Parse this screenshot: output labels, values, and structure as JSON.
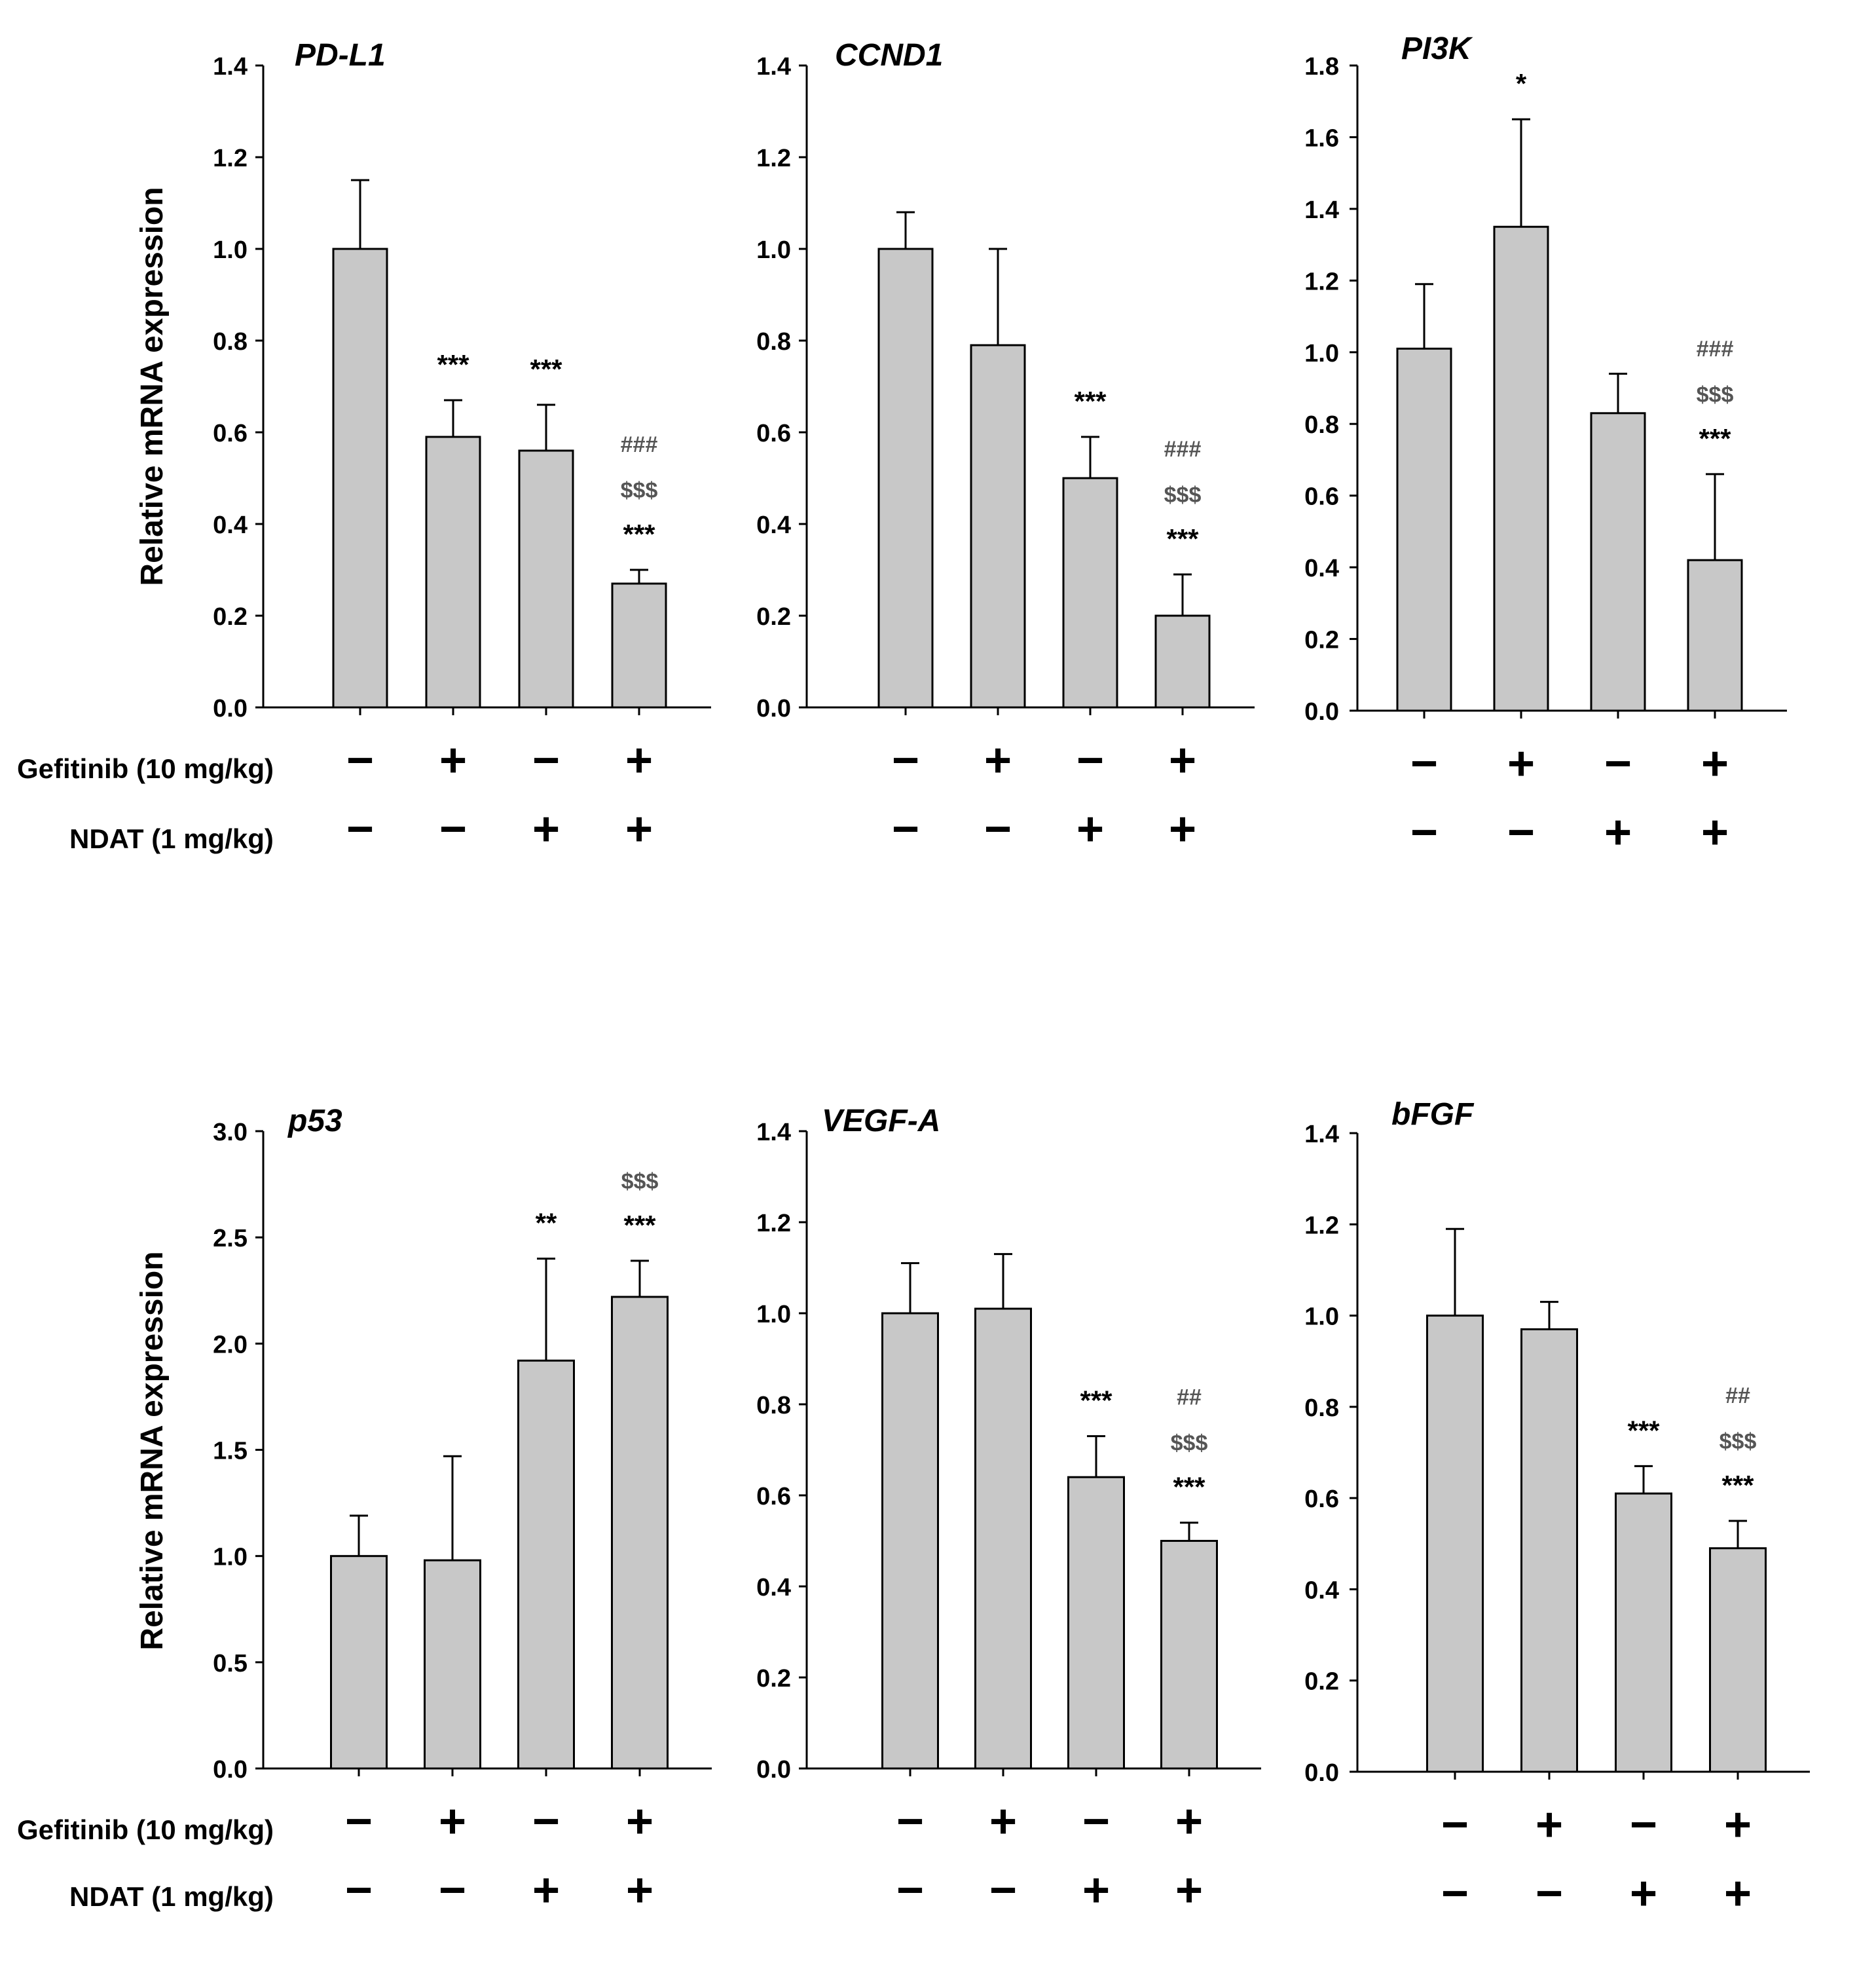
{
  "figure": {
    "ylabel": "Relative mRNA expression",
    "row_labels": [
      "Gefitinib (10 mg/kg)",
      "NDAT (1 mg/kg)"
    ],
    "gefitinib": [
      "−",
      "+",
      "−",
      "+"
    ],
    "ndat": [
      "−",
      "−",
      "+",
      "+"
    ]
  },
  "colors": {
    "bar_fill": "#c8c8c8",
    "bar_stroke": "#000000",
    "axis": "#000000",
    "text": "#000000",
    "annotation_gray": "#555555"
  },
  "chart_data": [
    {
      "type": "bar",
      "title": "PD-L1",
      "ylabel": "Relative mRNA expression",
      "categories": [
        "Gef−/NDAT−",
        "Gef+/NDAT−",
        "Gef−/NDAT+",
        "Gef+/NDAT+"
      ],
      "values": [
        1.0,
        0.59,
        0.56,
        0.27
      ],
      "errors": [
        0.15,
        0.08,
        0.1,
        0.03
      ],
      "ylim": [
        0,
        1.4
      ],
      "yticks": [
        0.0,
        0.2,
        0.4,
        0.6,
        0.8,
        1.0,
        1.2,
        1.4
      ],
      "tick_decimals": 1,
      "annotations": [
        [],
        [
          "***"
        ],
        [
          "***"
        ],
        [
          "###",
          "$$$",
          "***"
        ]
      ]
    },
    {
      "type": "bar",
      "title": "CCND1",
      "ylabel": "",
      "categories": [
        "Gef−/NDAT−",
        "Gef+/NDAT−",
        "Gef−/NDAT+",
        "Gef+/NDAT+"
      ],
      "values": [
        1.0,
        0.79,
        0.5,
        0.2
      ],
      "errors": [
        0.08,
        0.21,
        0.09,
        0.09
      ],
      "ylim": [
        0,
        1.4
      ],
      "yticks": [
        0.0,
        0.2,
        0.4,
        0.6,
        0.8,
        1.0,
        1.2,
        1.4
      ],
      "tick_decimals": 1,
      "annotations": [
        [],
        [],
        [
          "***"
        ],
        [
          "###",
          "$$$",
          "***"
        ]
      ]
    },
    {
      "type": "bar",
      "title": "PI3K",
      "ylabel": "",
      "categories": [
        "Gef−/NDAT−",
        "Gef+/NDAT−",
        "Gef−/NDAT+",
        "Gef+/NDAT+"
      ],
      "values": [
        1.01,
        1.35,
        0.83,
        0.42
      ],
      "errors": [
        0.18,
        0.3,
        0.11,
        0.24
      ],
      "ylim": [
        0,
        1.8
      ],
      "yticks": [
        0.0,
        0.2,
        0.4,
        0.6,
        0.8,
        1.0,
        1.2,
        1.4,
        1.6,
        1.8
      ],
      "tick_decimals": 1,
      "annotations": [
        [],
        [
          "*"
        ],
        [],
        [
          "###",
          "$$$",
          "***"
        ]
      ]
    },
    {
      "type": "bar",
      "title": "p53",
      "ylabel": "Relative mRNA expression",
      "categories": [
        "Gef−/NDAT−",
        "Gef+/NDAT−",
        "Gef−/NDAT+",
        "Gef+/NDAT+"
      ],
      "values": [
        1.0,
        0.98,
        1.92,
        2.22
      ],
      "errors": [
        0.19,
        0.49,
        0.48,
        0.17
      ],
      "ylim": [
        0,
        3.0
      ],
      "yticks": [
        0.0,
        0.5,
        1.0,
        1.5,
        2.0,
        2.5,
        3.0
      ],
      "tick_decimals": 1,
      "annotations": [
        [],
        [],
        [
          "**"
        ],
        [
          "$$$",
          "***"
        ]
      ]
    },
    {
      "type": "bar",
      "title": "VEGF-A",
      "ylabel": "",
      "categories": [
        "Gef−/NDAT−",
        "Gef+/NDAT−",
        "Gef−/NDAT+",
        "Gef+/NDAT+"
      ],
      "values": [
        1.0,
        1.01,
        0.64,
        0.5
      ],
      "errors": [
        0.11,
        0.12,
        0.09,
        0.04
      ],
      "ylim": [
        0,
        1.4
      ],
      "yticks": [
        0.0,
        0.2,
        0.4,
        0.6,
        0.8,
        1.0,
        1.2,
        1.4
      ],
      "tick_decimals": 1,
      "annotations": [
        [],
        [],
        [
          "***"
        ],
        [
          "##",
          "$$$",
          "***"
        ]
      ]
    },
    {
      "type": "bar",
      "title": "bFGF",
      "ylabel": "",
      "categories": [
        "Gef−/NDAT−",
        "Gef+/NDAT−",
        "Gef−/NDAT+",
        "Gef+/NDAT+"
      ],
      "values": [
        1.0,
        0.97,
        0.61,
        0.49
      ],
      "errors": [
        0.19,
        0.06,
        0.06,
        0.06
      ],
      "ylim": [
        0,
        1.4
      ],
      "yticks": [
        0.0,
        0.2,
        0.4,
        0.6,
        0.8,
        1.0,
        1.2,
        1.4
      ],
      "tick_decimals": 1,
      "annotations": [
        [],
        [],
        [
          "***"
        ],
        [
          "##",
          "$$$",
          "***"
        ]
      ]
    }
  ]
}
